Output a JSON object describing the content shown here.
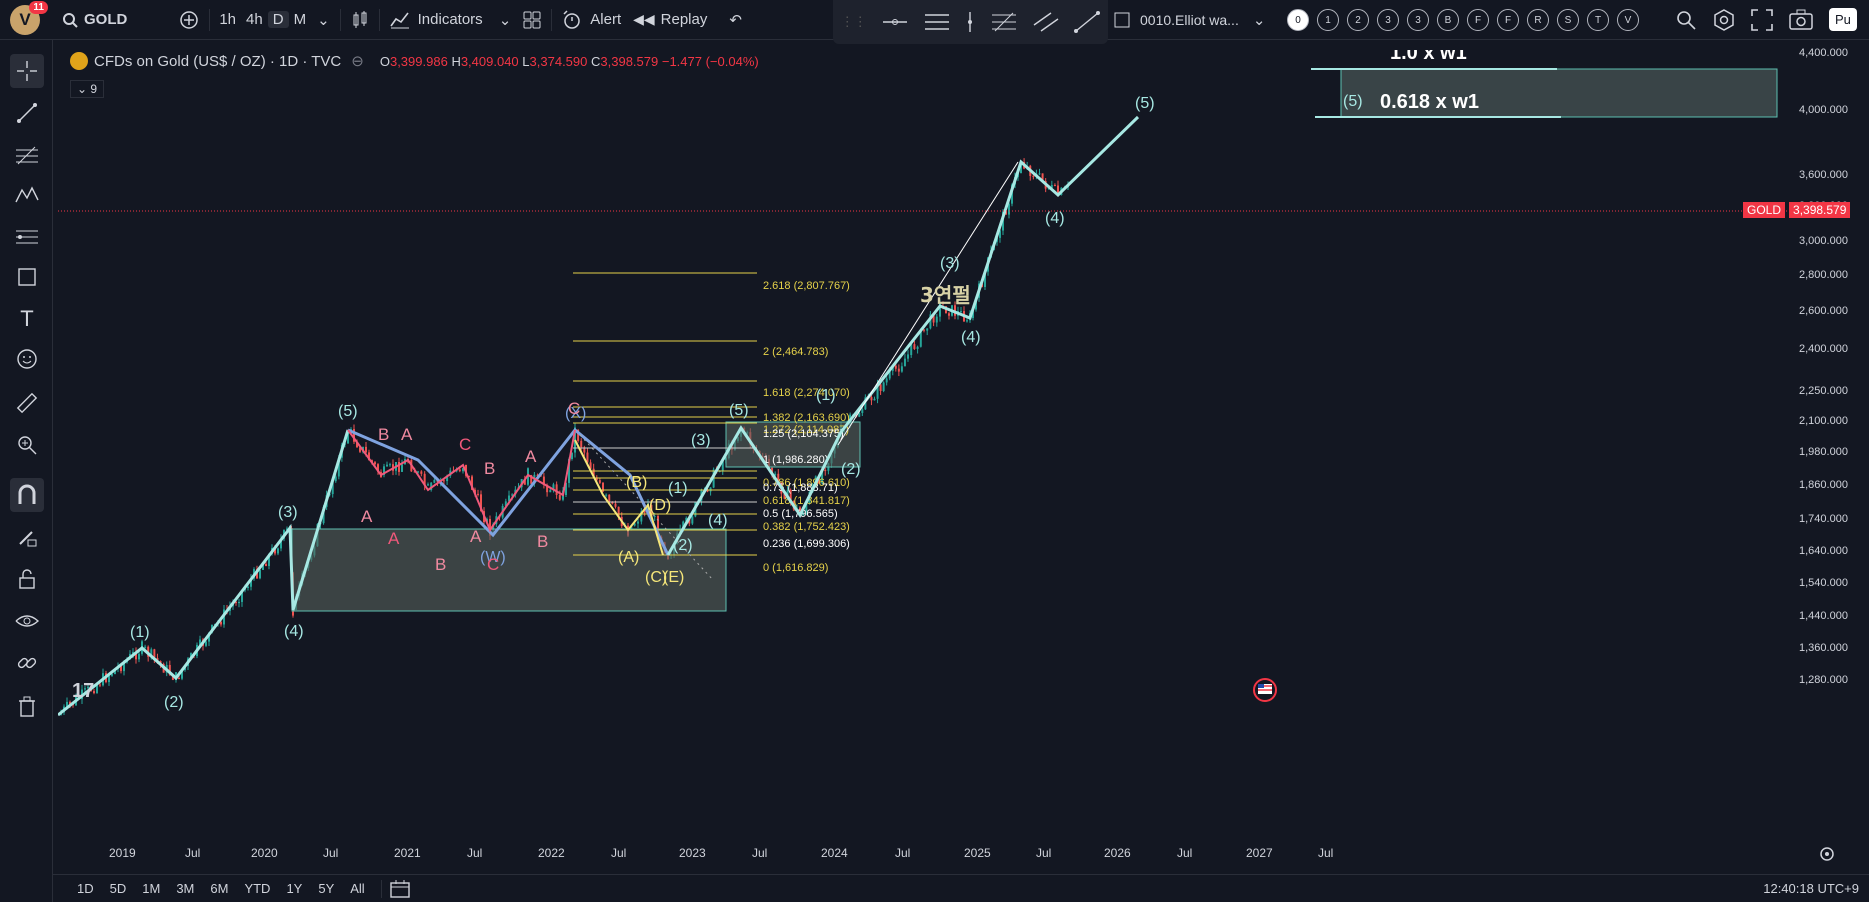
{
  "topbar": {
    "notification_count": "11",
    "symbol": "GOLD",
    "timeframes": [
      "1h",
      "4h",
      "D",
      "M"
    ],
    "active_timeframe": "D",
    "indicators_label": "Indicators",
    "alert_label": "Alert",
    "replay_label": "Replay",
    "layout_name": "0010.Elliot wa...",
    "layout_slots": [
      "0",
      "1",
      "2",
      "3",
      "3",
      "B",
      "F",
      "F",
      "R",
      "S",
      "T",
      "V"
    ],
    "publish_label": "Pu"
  },
  "legend": {
    "title": "CFDs on Gold (US$ / OZ) · 1D · TVC",
    "open_label": "O",
    "open": "3,399.986",
    "high_label": "H",
    "high": "3,409.040",
    "low_label": "L",
    "low": "3,374.590",
    "close_label": "C",
    "close": "3,398.579",
    "change": "−1.477 (−0.04%)",
    "indicator_count": "9"
  },
  "price_axis": {
    "labels": [
      "4,400.000",
      "4,000.000",
      "3,600.000",
      "3,200.000",
      "3,000.000",
      "2,800.000",
      "2,600.000",
      "2,400.000",
      "2,250.000",
      "2,100.000",
      "1,980.000",
      "1,860.000",
      "1,740.000",
      "1,640.000",
      "1,540.000",
      "1,440.000",
      "1,360.000",
      "1,280.000"
    ],
    "current_symbol": "GOLD",
    "current_price": "3,398.579"
  },
  "time_axis": {
    "labels": [
      "2019",
      "Jul",
      "2020",
      "Jul",
      "2021",
      "Jul",
      "2022",
      "Jul",
      "2023",
      "Jul",
      "2024",
      "Jul",
      "2025",
      "Jul",
      "2026",
      "Jul",
      "2027",
      "Jul"
    ]
  },
  "annotations": {
    "title_korean": "3연펄",
    "target_top": "1.0 x w1",
    "target_mid": "0.618 x w1",
    "target_wave": "(5)",
    "fib_levels": [
      "2.618 (2,807.767)",
      "2 (2,464.783)",
      "1.618 (2,274.070)",
      "1.382 (2,163.690)",
      "1.272 (2,114.087)",
      "1.25 (2,104.375)",
      "1 (1,986.280)",
      "0.786 (1,896.610)",
      "0.75 (1,883.71)",
      "0.618 (1,841.817)",
      "0.5 (1,796.565)",
      "0.382 (1,752.423)",
      "0.236 (1,699.306)",
      "0 (1,616.829)"
    ],
    "wave_labels_cyan": [
      "(1)",
      "(2)",
      "(3)",
      "(4)",
      "(5)",
      "(W)",
      "(X)",
      "(3)",
      "(5)",
      "(1)",
      "(2)",
      "(3)",
      "(4)",
      "(5)",
      "(4)",
      "(1)",
      "(2)",
      "(4)"
    ],
    "wave_labels_pink": [
      "B",
      "A",
      "A",
      "A",
      "B",
      "C",
      "B",
      "A",
      "A",
      "B",
      "C",
      "C"
    ],
    "wave_labels_yellow": [
      "(A)",
      "(B)",
      "(C)",
      "(D)",
      "(E)"
    ]
  },
  "bottombar": {
    "ranges": [
      "1D",
      "5D",
      "1M",
      "3M",
      "6M",
      "YTD",
      "1Y",
      "5Y",
      "All"
    ],
    "clock": "12:40:18 UTC+9"
  },
  "colors": {
    "background": "#131722",
    "up": "#26a69a",
    "down": "#ef5350",
    "wave_cyan": "#a7e8e3",
    "wave_pink": "#f08aa0",
    "fib_yellow": "#e6d24a",
    "price_red": "#f23645"
  }
}
